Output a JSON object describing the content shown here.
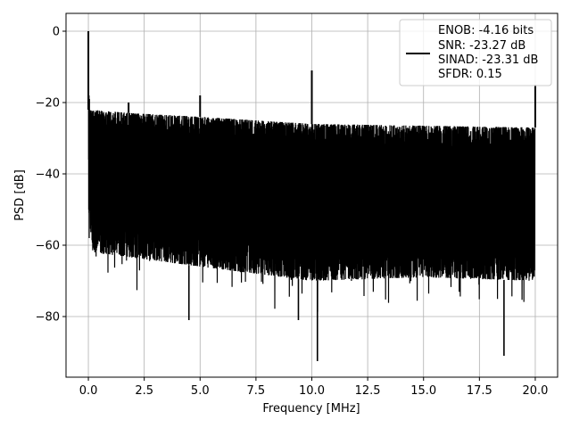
{
  "chart_data": {
    "type": "line",
    "title": "",
    "xlabel": "Frequency [MHz]",
    "ylabel": "PSD [dB]",
    "xlim": [
      -1.0,
      21.0
    ],
    "ylim": [
      -97,
      5
    ],
    "xticks": [
      0.0,
      2.5,
      5.0,
      7.5,
      10.0,
      12.5,
      15.0,
      17.5,
      20.0
    ],
    "xtick_labels": [
      "0.0",
      "2.5",
      "5.0",
      "7.5",
      "10.0",
      "12.5",
      "15.0",
      "17.5",
      "20.0"
    ],
    "yticks": [
      0,
      -20,
      -40,
      -60,
      -80
    ],
    "ytick_labels": [
      "0",
      "−20",
      "−40",
      "−60",
      "−80"
    ],
    "grid": true,
    "series_color": "#000000",
    "legend": {
      "placement": "upper-right",
      "entries": [
        "ENOB: -4.16 bits",
        "SNR: -23.27 dB",
        "SINAD: -23.31 dB",
        "SFDR: 0.15"
      ]
    },
    "noise_floor": {
      "upper_envelope": [
        [
          0.0,
          -22
        ],
        [
          2.0,
          -23
        ],
        [
          5.0,
          -24
        ],
        [
          10.0,
          -26
        ],
        [
          15.0,
          -26.5
        ],
        [
          20.0,
          -27
        ]
      ],
      "lower_envelope": [
        [
          0.0,
          -50
        ],
        [
          0.2,
          -62
        ],
        [
          5.0,
          -66
        ],
        [
          10.0,
          -70
        ],
        [
          15.0,
          -69
        ],
        [
          20.0,
          -70
        ]
      ]
    },
    "peaks": [
      {
        "x": 0.0,
        "y": 0
      },
      {
        "x": 1.8,
        "y": -20
      },
      {
        "x": 5.0,
        "y": -18
      },
      {
        "x": 10.0,
        "y": -11
      },
      {
        "x": 20.0,
        "y": -15
      }
    ],
    "dips": [
      {
        "x": 4.5,
        "y": -81
      },
      {
        "x": 10.25,
        "y": -92.5
      },
      {
        "x": 18.6,
        "y": -91
      },
      {
        "x": 9.4,
        "y": -81
      }
    ]
  }
}
